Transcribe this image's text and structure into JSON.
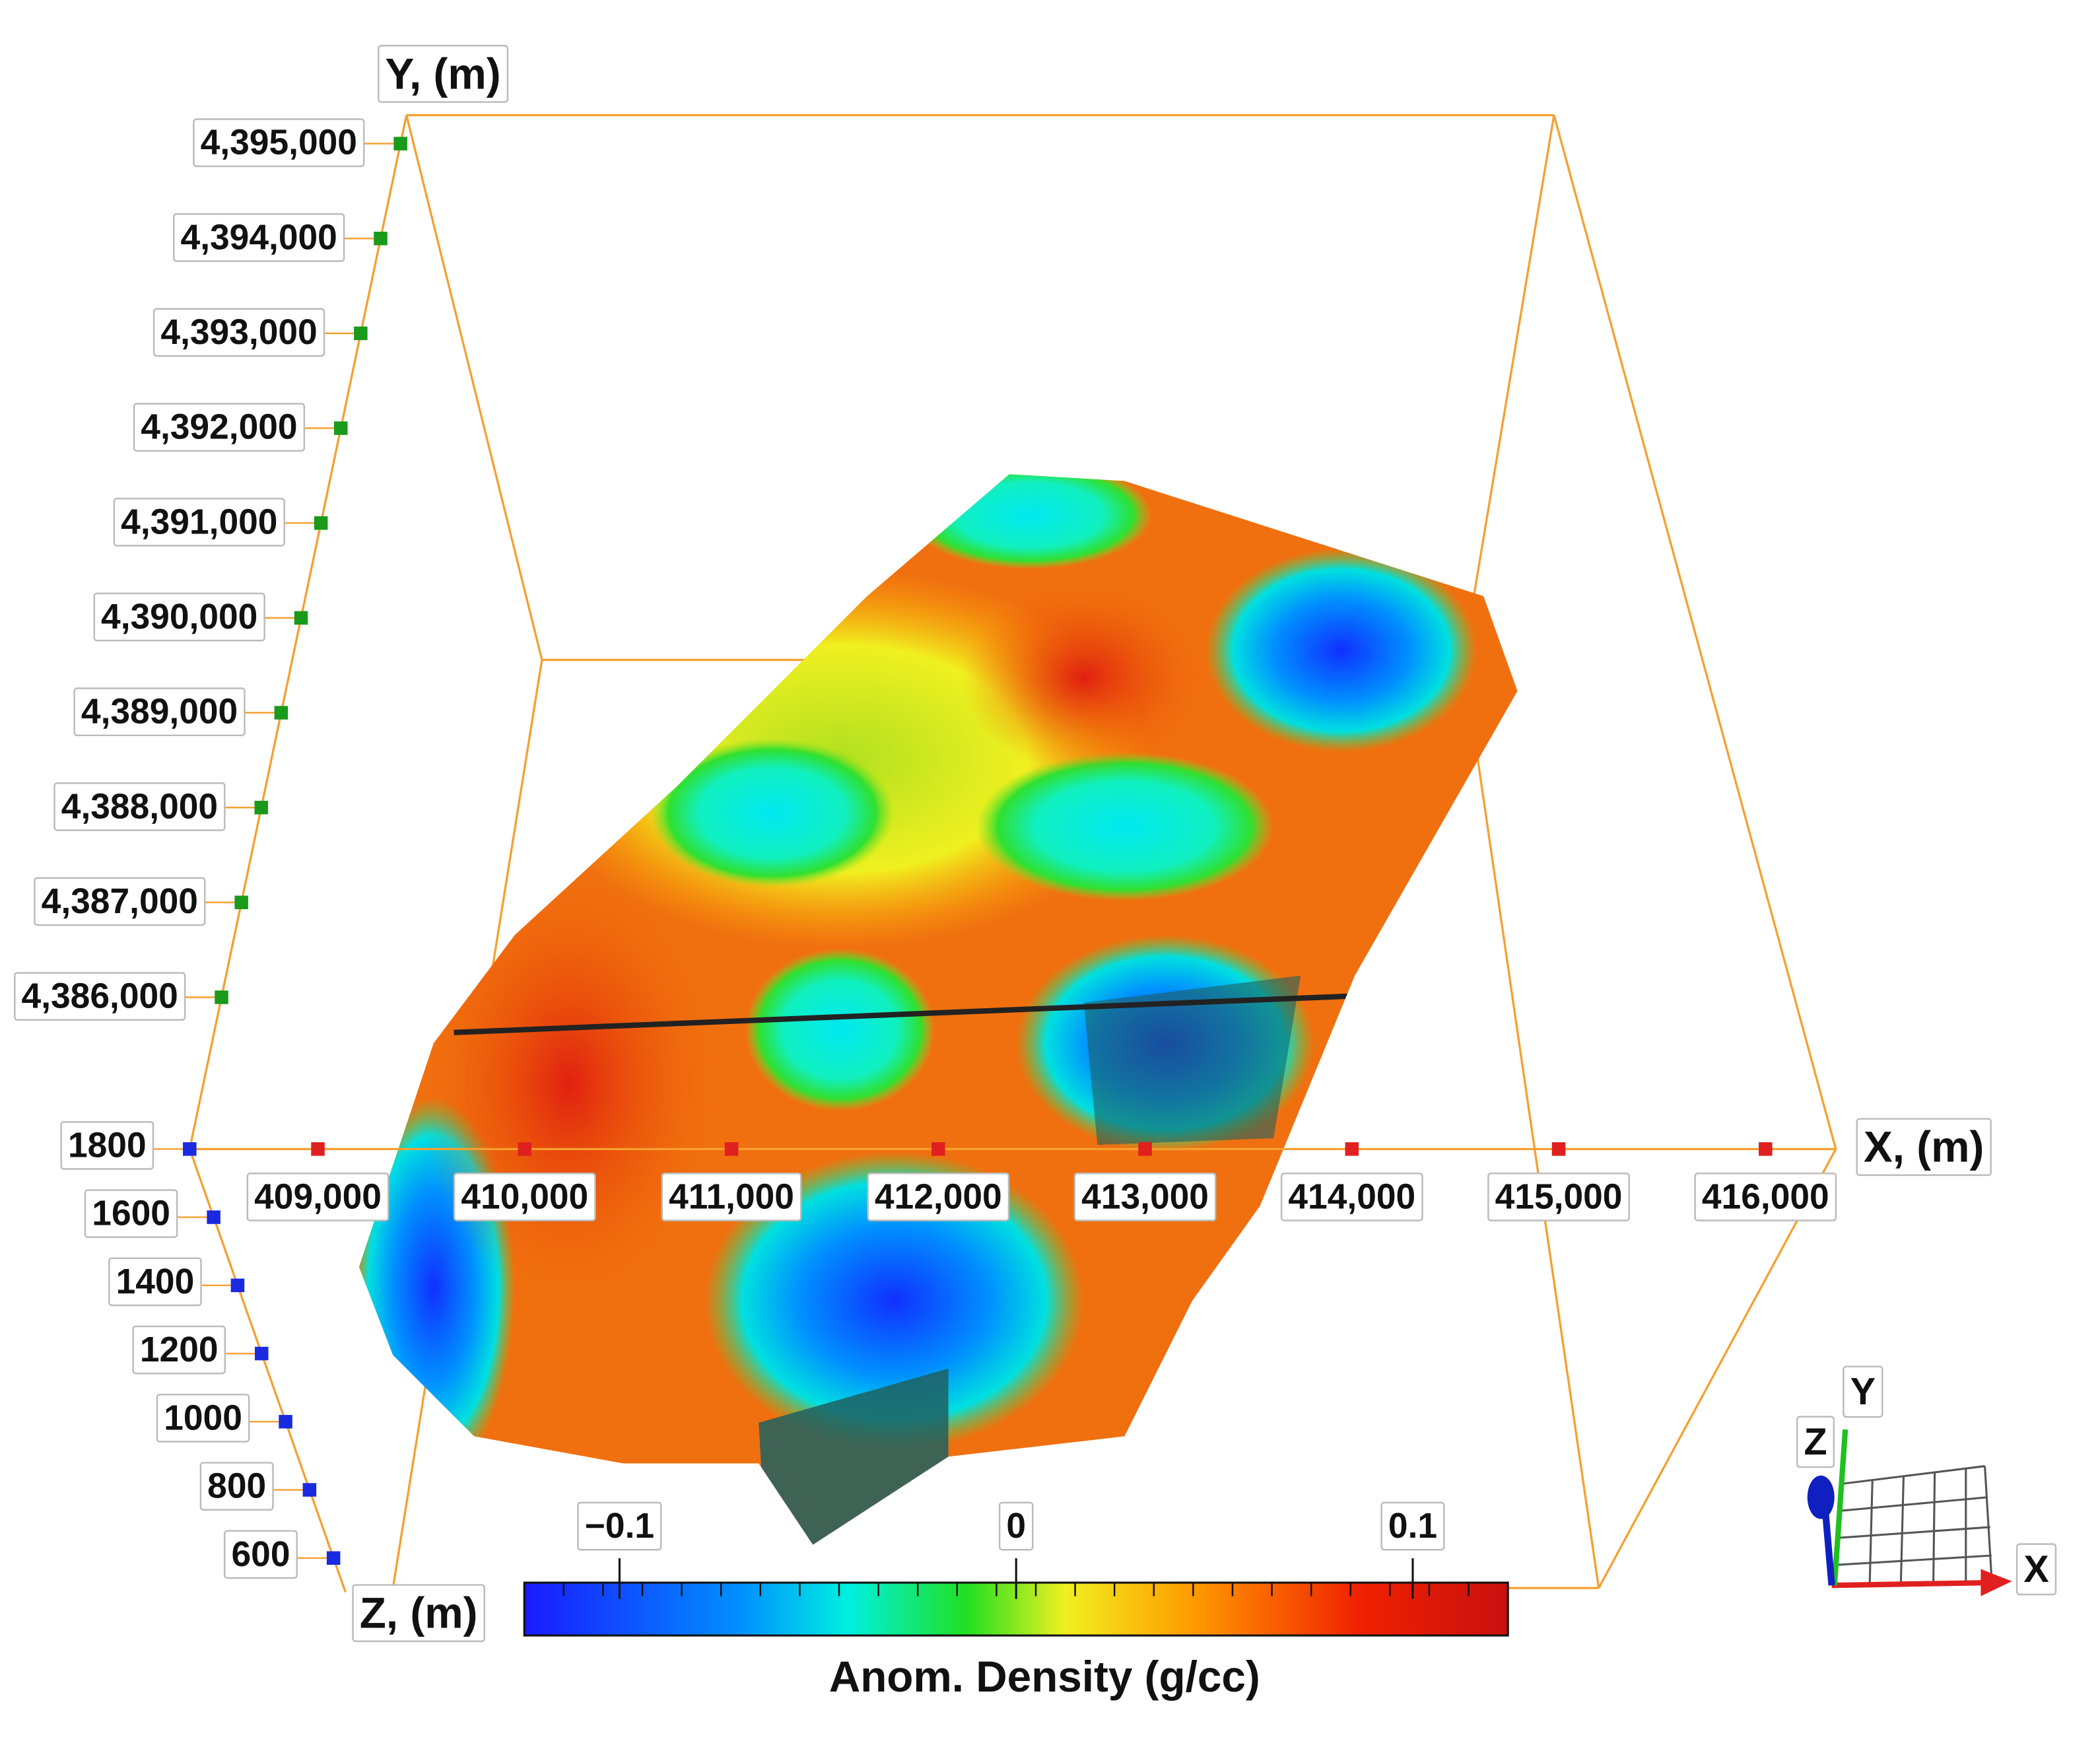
{
  "chart_data": {
    "type": "volume",
    "x_title": "X, (m)",
    "y_title": "Y, (m)",
    "z_title": "Z, (m)",
    "xlim": [
      408380,
      416340
    ],
    "xticks": [
      {
        "value": 409000,
        "label": "409,000"
      },
      {
        "value": 410000,
        "label": "410,000"
      },
      {
        "value": 411000,
        "label": "411,000"
      },
      {
        "value": 412000,
        "label": "412,000"
      },
      {
        "value": 413000,
        "label": "413,000"
      },
      {
        "value": 414000,
        "label": "414,000"
      },
      {
        "value": 415000,
        "label": "415,000"
      },
      {
        "value": 416000,
        "label": "416,000"
      }
    ],
    "ylim": [
      4384400,
      4395300
    ],
    "yticks": [
      {
        "value": 4395000,
        "label": "4,395,000"
      },
      {
        "value": 4394000,
        "label": "4,394,000"
      },
      {
        "value": 4393000,
        "label": "4,393,000"
      },
      {
        "value": 4392000,
        "label": "4,392,000"
      },
      {
        "value": 4391000,
        "label": "4,391,000"
      },
      {
        "value": 4390000,
        "label": "4,390,000"
      },
      {
        "value": 4389000,
        "label": "4,389,000"
      },
      {
        "value": 4388000,
        "label": "4,388,000"
      },
      {
        "value": 4387000,
        "label": "4,387,000"
      },
      {
        "value": 4386000,
        "label": "4,386,000"
      }
    ],
    "zlim": [
      1800,
      500
    ],
    "zticks": [
      1800,
      1600,
      1400,
      1200,
      1000,
      800,
      600
    ],
    "colorbar": {
      "title": "Anom. Density (g/cc)",
      "clim": [
        -0.124,
        0.124
      ],
      "ticks": [
        {
          "value": -0.1,
          "label": "−0.1"
        },
        0,
        0.1
      ]
    },
    "triad": {
      "x": "X",
      "y": "Y",
      "z": "Z"
    }
  }
}
